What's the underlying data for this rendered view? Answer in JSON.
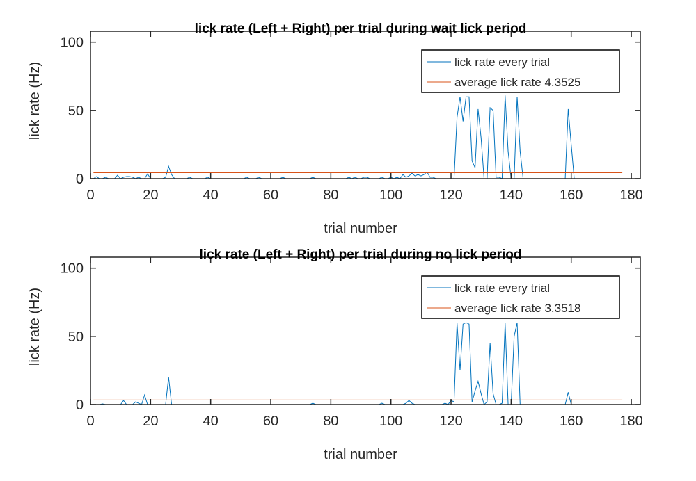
{
  "chart_data": [
    {
      "type": "line",
      "title": "lick rate (Left + Right) per trial during wait lick period",
      "xlabel": "trial number",
      "ylabel": "lick rate (Hz)",
      "xlim": [
        0,
        183
      ],
      "ylim": [
        0,
        108
      ],
      "xticks": [
        0,
        20,
        40,
        60,
        80,
        100,
        120,
        140,
        160,
        180
      ],
      "yticks": [
        0,
        50,
        100
      ],
      "x": [
        1,
        2,
        3,
        4,
        5,
        6,
        7,
        8,
        9,
        10,
        11,
        12,
        13,
        14,
        15,
        16,
        17,
        18,
        19,
        20,
        21,
        22,
        23,
        24,
        25,
        26,
        27,
        28,
        29,
        30,
        31,
        32,
        33,
        34,
        35,
        36,
        37,
        38,
        39,
        40,
        41,
        42,
        43,
        44,
        45,
        46,
        47,
        48,
        49,
        50,
        51,
        52,
        53,
        54,
        55,
        56,
        57,
        58,
        59,
        60,
        61,
        62,
        63,
        64,
        65,
        66,
        67,
        68,
        69,
        70,
        71,
        72,
        73,
        74,
        75,
        76,
        77,
        78,
        79,
        80,
        81,
        82,
        83,
        84,
        85,
        86,
        87,
        88,
        89,
        90,
        91,
        92,
        93,
        94,
        95,
        96,
        97,
        98,
        99,
        100,
        101,
        102,
        103,
        104,
        105,
        106,
        107,
        108,
        109,
        110,
        111,
        112,
        113,
        114,
        115,
        116,
        117,
        118,
        119,
        120,
        121,
        122,
        123,
        124,
        125,
        126,
        127,
        128,
        129,
        130,
        131,
        132,
        133,
        134,
        135,
        136,
        137,
        138,
        139,
        140,
        141,
        142,
        143,
        144,
        145,
        146,
        147,
        148,
        149,
        150,
        151,
        152,
        153,
        154,
        155,
        156,
        157,
        158,
        159,
        160,
        161,
        162,
        163,
        164,
        165,
        166,
        167,
        168,
        169,
        170,
        171,
        172,
        173,
        174,
        175,
        176,
        177
      ],
      "series": [
        {
          "name": "lick rate every trial",
          "color": "#0072bd",
          "values": [
            0,
            1.5,
            0,
            0,
            1,
            0,
            0,
            0,
            2.5,
            0,
            1,
            1.5,
            1.5,
            1,
            0,
            1,
            0,
            0,
            3.5,
            0,
            0,
            0,
            0,
            0,
            1,
            9,
            3,
            0,
            0,
            0,
            0,
            0,
            1,
            0,
            0,
            0,
            0,
            0,
            1,
            0,
            0,
            0,
            0,
            0,
            0,
            0,
            0,
            0,
            0,
            0,
            0,
            1,
            0,
            0,
            0,
            1,
            0,
            0,
            0,
            0,
            0,
            0,
            0,
            1,
            0,
            0,
            0,
            0,
            0,
            0,
            0,
            0,
            0,
            1,
            0,
            0,
            0,
            0,
            0,
            0,
            0,
            0,
            0,
            0,
            0,
            1,
            0,
            1,
            0,
            0,
            1,
            1,
            0,
            0,
            0,
            0,
            1,
            0,
            0,
            1,
            0,
            1,
            0,
            3,
            1,
            2,
            4,
            2,
            3,
            2,
            3,
            5,
            1,
            1,
            0,
            0,
            0,
            0,
            0,
            0,
            0,
            45,
            60,
            42,
            60,
            60,
            13,
            8,
            51,
            30,
            0,
            0,
            52,
            50,
            1,
            1,
            0,
            61,
            20,
            0,
            0,
            60,
            20,
            0,
            0,
            0,
            0,
            0,
            0,
            0,
            0,
            0,
            0,
            0,
            0,
            0,
            0,
            0,
            51,
            25,
            0,
            0,
            0,
            0,
            0,
            0,
            0,
            0,
            0,
            0,
            0,
            0,
            0,
            0,
            0,
            0,
            0
          ]
        }
      ],
      "average": {
        "name": "average lick rate 4.3525",
        "color": "#d95319",
        "value": 4.3525,
        "x": [
          1,
          177
        ]
      }
    },
    {
      "type": "line",
      "title": "lick rate (Left + Right) per trial during no lick period",
      "xlabel": "trial number",
      "ylabel": "lick rate (Hz)",
      "xlim": [
        0,
        183
      ],
      "ylim": [
        0,
        108
      ],
      "xticks": [
        0,
        20,
        40,
        60,
        80,
        100,
        120,
        140,
        160,
        180
      ],
      "yticks": [
        0,
        50,
        100
      ],
      "x": [
        1,
        2,
        3,
        4,
        5,
        6,
        7,
        8,
        9,
        10,
        11,
        12,
        13,
        14,
        15,
        16,
        17,
        18,
        19,
        20,
        21,
        22,
        23,
        24,
        25,
        26,
        27,
        28,
        29,
        30,
        31,
        32,
        33,
        34,
        35,
        36,
        37,
        38,
        39,
        40,
        41,
        42,
        43,
        44,
        45,
        46,
        47,
        48,
        49,
        50,
        51,
        52,
        53,
        54,
        55,
        56,
        57,
        58,
        59,
        60,
        61,
        62,
        63,
        64,
        65,
        66,
        67,
        68,
        69,
        70,
        71,
        72,
        73,
        74,
        75,
        76,
        77,
        78,
        79,
        80,
        81,
        82,
        83,
        84,
        85,
        86,
        87,
        88,
        89,
        90,
        91,
        92,
        93,
        94,
        95,
        96,
        97,
        98,
        99,
        100,
        101,
        102,
        103,
        104,
        105,
        106,
        107,
        108,
        109,
        110,
        111,
        112,
        113,
        114,
        115,
        116,
        117,
        118,
        119,
        120,
        121,
        122,
        123,
        124,
        125,
        126,
        127,
        128,
        129,
        130,
        131,
        132,
        133,
        134,
        135,
        136,
        137,
        138,
        139,
        140,
        141,
        142,
        143,
        144,
        145,
        146,
        147,
        148,
        149,
        150,
        151,
        152,
        153,
        154,
        155,
        156,
        157,
        158,
        159,
        160,
        161,
        162,
        163,
        164,
        165,
        166,
        167,
        168,
        169,
        170,
        171,
        172,
        173,
        174,
        175,
        176,
        177
      ],
      "series": [
        {
          "name": "lick rate every trial",
          "color": "#0072bd",
          "values": [
            0,
            0,
            0,
            0.5,
            0,
            0,
            0,
            0,
            0,
            0,
            3,
            0,
            0,
            0,
            2,
            1,
            0,
            7,
            0,
            0,
            0,
            0,
            0,
            0,
            0,
            20,
            0,
            0,
            0,
            0,
            0,
            0,
            0,
            0,
            0,
            0,
            0,
            0,
            0,
            0,
            0,
            0,
            0,
            0,
            0,
            0,
            0,
            0,
            0,
            0,
            0,
            0,
            0,
            0,
            0,
            0,
            0,
            0,
            0,
            0,
            0,
            0,
            0,
            0,
            0,
            0,
            0,
            0,
            0,
            0,
            0,
            0,
            0,
            1,
            0,
            0,
            0,
            0,
            0,
            0,
            0,
            0,
            0,
            0,
            0,
            0,
            0,
            0,
            0,
            0,
            0,
            0,
            0,
            0,
            0,
            0,
            1,
            0,
            0,
            0,
            0,
            0,
            0,
            0,
            1,
            3,
            1,
            0,
            0,
            0,
            0,
            0,
            0,
            0,
            0,
            0,
            0,
            1,
            0,
            3,
            2,
            60,
            25,
            59,
            60,
            59,
            2,
            10,
            17,
            8,
            0,
            2,
            45,
            8,
            0,
            0,
            1,
            60,
            0,
            0,
            50,
            60,
            0,
            0,
            0,
            0,
            0,
            0,
            0,
            0,
            0,
            0,
            0,
            0,
            0,
            0,
            0,
            0,
            9,
            0,
            0,
            0,
            0,
            0,
            0,
            0,
            0,
            0,
            0,
            0,
            0,
            0,
            0,
            0,
            0,
            0,
            0
          ]
        }
      ],
      "average": {
        "name": "average lick rate 3.3518",
        "color": "#d95319",
        "value": 3.3518,
        "x": [
          1,
          177
        ]
      }
    }
  ]
}
